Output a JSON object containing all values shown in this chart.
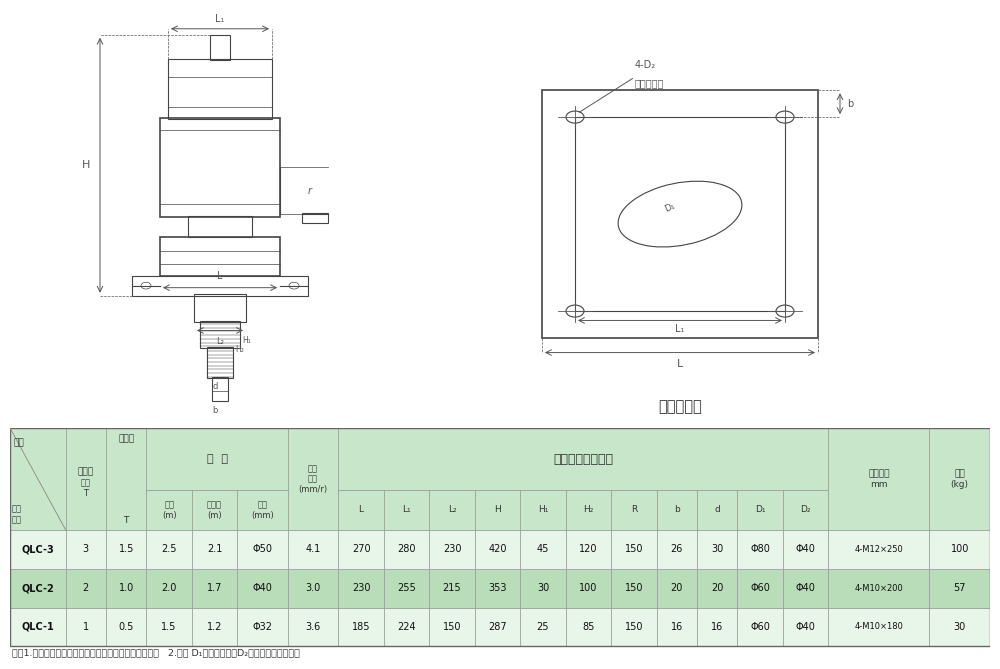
{
  "bg_color": "#ffffff",
  "hdr_bg": "#c8e6c9",
  "row_bg_alt": "#b8ddb8",
  "row_bg_norm": "#e8f5e9",
  "dim_color": "#555555",
  "line_color": "#444444",
  "diagram_label": "基础布置图",
  "annotation1": "4-D₂",
  "annotation2": "二期预留孔",
  "rows": [
    [
      "QLC-1",
      "1",
      "0.5",
      "1.5",
      "1.2",
      "Φ32",
      "3.6",
      "185",
      "224",
      "150",
      "287",
      "25",
      "85",
      "150",
      "16",
      "16",
      "Φ60",
      "Φ40",
      "4-M10×180",
      "30"
    ],
    [
      "QLC-2",
      "2",
      "1.0",
      "2.0",
      "1.7",
      "Φ40",
      "3.0",
      "230",
      "255",
      "215",
      "353",
      "30",
      "100",
      "150",
      "20",
      "20",
      "Φ60",
      "Φ40",
      "4-M10×200",
      "57"
    ],
    [
      "QLC-3",
      "3",
      "1.5",
      "2.5",
      "2.1",
      "Φ50",
      "4.1",
      "270",
      "280",
      "230",
      "420",
      "45",
      "120",
      "150",
      "26",
      "30",
      "Φ80",
      "Φ40",
      "4-M12×250",
      "100"
    ]
  ],
  "note": "注：1.启闭速度指的是手柄转一圈阀门提升或下降的距离   2.参数 D₁是过螺杆孔，D₂是二次浇注预留孔。",
  "col_widths": [
    5.5,
    4.0,
    4.0,
    4.5,
    4.5,
    5.0,
    5.0,
    4.5,
    4.5,
    4.5,
    4.5,
    4.5,
    4.5,
    4.5,
    4.0,
    4.0,
    4.5,
    4.5,
    10.0,
    6.0
  ],
  "sub_labels": [
    "型号\n规格",
    "数据\nT",
    "T",
    "全长\n(m)",
    "螺纹长\n(m)",
    "直径\n(mm)",
    "(mm/r)",
    "L",
    "L₁",
    "L₂",
    "H",
    "H₁",
    "H₂",
    "R",
    "b",
    "d",
    "D₁",
    "D₂",
    "",
    "(kg)"
  ]
}
